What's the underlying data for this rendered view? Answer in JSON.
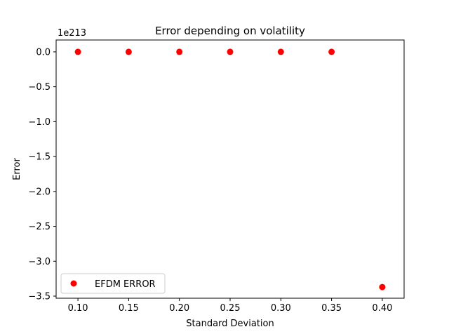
{
  "chart_data": {
    "type": "scatter",
    "title": "Error depending on volatility",
    "xlabel": "Standard Deviation",
    "ylabel": "Error",
    "offset_text": "1e213",
    "x_ticks": [
      0.1,
      0.15,
      0.2,
      0.25,
      0.3,
      0.35,
      0.4
    ],
    "x_tick_labels": [
      "0.10",
      "0.15",
      "0.20",
      "0.25",
      "0.30",
      "0.35",
      "0.40"
    ],
    "y_ticks": [
      0.0,
      -0.5,
      -1.0,
      -1.5,
      -2.0,
      -2.5,
      -3.0,
      -3.5
    ],
    "y_tick_labels": [
      "0.0",
      "−0.5",
      "−1.0",
      "−1.5",
      "−2.0",
      "−2.5",
      "−3.0",
      "−3.5"
    ],
    "xlim": [
      0.0785,
      0.4215
    ],
    "ylim": [
      -3.53,
      0.17
    ],
    "grid": false,
    "legend_position": "lower left",
    "series": [
      {
        "name": "EFDM ERROR",
        "color": "#ff0000",
        "marker": "circle",
        "x": [
          0.1,
          0.15,
          0.2,
          0.25,
          0.3,
          0.35,
          0.4
        ],
        "y": [
          0.0,
          0.0,
          0.0,
          0.0,
          0.0,
          0.0,
          -3.37
        ]
      }
    ]
  }
}
